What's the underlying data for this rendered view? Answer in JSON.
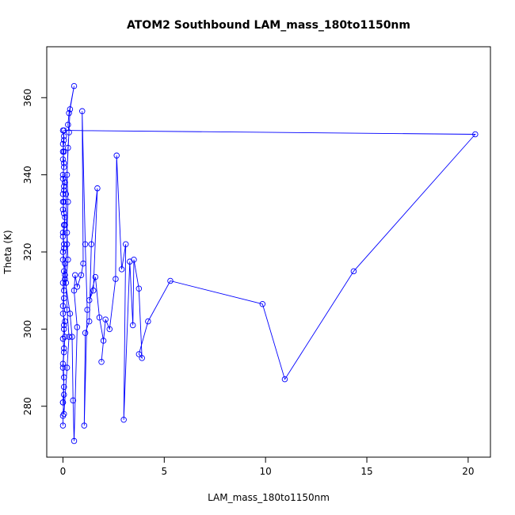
{
  "chart_data": {
    "type": "line",
    "title": "ATOM2 Southbound LAM_mass_180to1150nm",
    "xlabel": "LAM_mass_180to1150nm",
    "ylabel": "Theta (K)",
    "xlim": [
      -0.8,
      21.1
    ],
    "ylim": [
      266.8,
      373.2
    ],
    "x_ticks": [
      0,
      5,
      10,
      15,
      20
    ],
    "y_ticks": [
      280,
      300,
      320,
      340,
      360
    ],
    "grid": false,
    "legend": "none",
    "series_color": "#0000ff",
    "marker": "open-circle",
    "series": [
      {
        "points": [
          [
            0.0,
            275.0
          ],
          [
            0.0,
            277.5
          ],
          [
            0.05,
            283.0
          ],
          [
            0.0,
            281.0
          ],
          [
            0.05,
            287.5
          ],
          [
            0.0,
            291.0
          ],
          [
            0.05,
            295.0
          ],
          [
            0.0,
            297.5
          ],
          [
            0.05,
            300.0
          ],
          [
            0.1,
            302.0
          ],
          [
            0.0,
            304.0
          ],
          [
            0.05,
            308.0
          ],
          [
            0.0,
            312.0
          ],
          [
            0.05,
            315.0
          ],
          [
            0.1,
            317.0
          ],
          [
            0.0,
            320.0
          ],
          [
            0.05,
            322.0
          ],
          [
            0.0,
            325.0
          ],
          [
            0.05,
            327.0
          ],
          [
            0.1,
            329.0
          ],
          [
            0.0,
            331.0
          ],
          [
            0.05,
            333.0
          ],
          [
            0.0,
            335.0
          ],
          [
            0.05,
            337.0
          ],
          [
            0.1,
            338.0
          ],
          [
            0.0,
            340.0
          ],
          [
            0.05,
            342.0
          ],
          [
            0.0,
            344.0
          ],
          [
            0.05,
            346.0
          ],
          [
            0.0,
            348.0
          ],
          [
            0.05,
            350.0
          ],
          [
            0.0,
            351.5
          ],
          [
            0.05,
            349.0
          ],
          [
            0.0,
            346.0
          ],
          [
            0.05,
            343.0
          ],
          [
            0.0,
            339.0
          ],
          [
            0.05,
            336.0
          ],
          [
            0.0,
            333.0
          ],
          [
            0.05,
            330.0
          ],
          [
            0.1,
            327.0
          ],
          [
            0.0,
            324.0
          ],
          [
            0.05,
            321.0
          ],
          [
            0.0,
            318.0
          ],
          [
            0.1,
            314.0
          ],
          [
            0.05,
            310.0
          ],
          [
            0.0,
            306.0
          ],
          [
            0.05,
            301.0
          ],
          [
            0.1,
            298.0
          ],
          [
            0.05,
            294.0
          ],
          [
            0.0,
            290.0
          ],
          [
            0.05,
            285.0
          ],
          [
            0.0,
            281.0
          ],
          [
            0.05,
            278.0
          ],
          [
            0.2,
            290.0
          ],
          [
            0.3,
            298.0
          ],
          [
            0.2,
            305.0
          ],
          [
            0.15,
            312.0
          ],
          [
            0.25,
            318.0
          ],
          [
            0.2,
            325.0
          ],
          [
            0.25,
            333.0
          ],
          [
            0.2,
            340.0
          ],
          [
            0.25,
            347.0
          ],
          [
            0.3,
            351.0
          ],
          [
            0.25,
            353.0
          ],
          [
            0.3,
            356.0
          ],
          [
            0.55,
            363.0
          ],
          [
            0.35,
            357.0
          ],
          [
            0.15,
            335.0
          ],
          [
            0.2,
            322.0
          ],
          [
            0.1,
            313.0
          ],
          [
            0.35,
            304.0
          ],
          [
            0.45,
            298.0
          ],
          [
            0.5,
            281.5
          ],
          [
            0.55,
            271.0
          ],
          [
            0.7,
            300.5
          ],
          [
            0.55,
            310.0
          ],
          [
            0.6,
            314.0
          ],
          [
            0.7,
            311.0
          ],
          [
            0.9,
            314.0
          ],
          [
            1.0,
            317.0
          ],
          [
            0.95,
            356.5
          ],
          [
            1.1,
            322.0
          ],
          [
            1.2,
            305.0
          ],
          [
            1.05,
            275.0
          ],
          [
            1.1,
            299.0
          ],
          [
            1.3,
            302.0
          ],
          [
            1.4,
            322.0
          ],
          [
            1.7,
            336.5
          ],
          [
            1.5,
            310.0
          ],
          [
            1.3,
            307.5
          ],
          [
            1.6,
            313.5
          ],
          [
            1.8,
            303.0
          ],
          [
            2.0,
            297.0
          ],
          [
            1.9,
            291.5
          ],
          [
            2.1,
            302.5
          ],
          [
            2.3,
            300.0
          ],
          [
            2.6,
            313.0
          ],
          [
            2.65,
            345.0
          ],
          [
            2.9,
            315.5
          ],
          [
            3.1,
            322.0
          ],
          [
            3.0,
            276.5
          ],
          [
            3.3,
            317.5
          ],
          [
            3.45,
            301.0
          ],
          [
            3.5,
            318.0
          ],
          [
            3.75,
            310.5
          ],
          [
            3.9,
            292.5
          ],
          [
            3.75,
            293.5
          ],
          [
            4.2,
            302.0
          ],
          [
            5.3,
            312.5
          ],
          [
            9.85,
            306.5
          ],
          [
            10.95,
            287.0
          ],
          [
            14.35,
            315.0
          ],
          [
            20.35,
            350.5
          ],
          [
            0.05,
            351.5
          ]
        ]
      }
    ]
  }
}
